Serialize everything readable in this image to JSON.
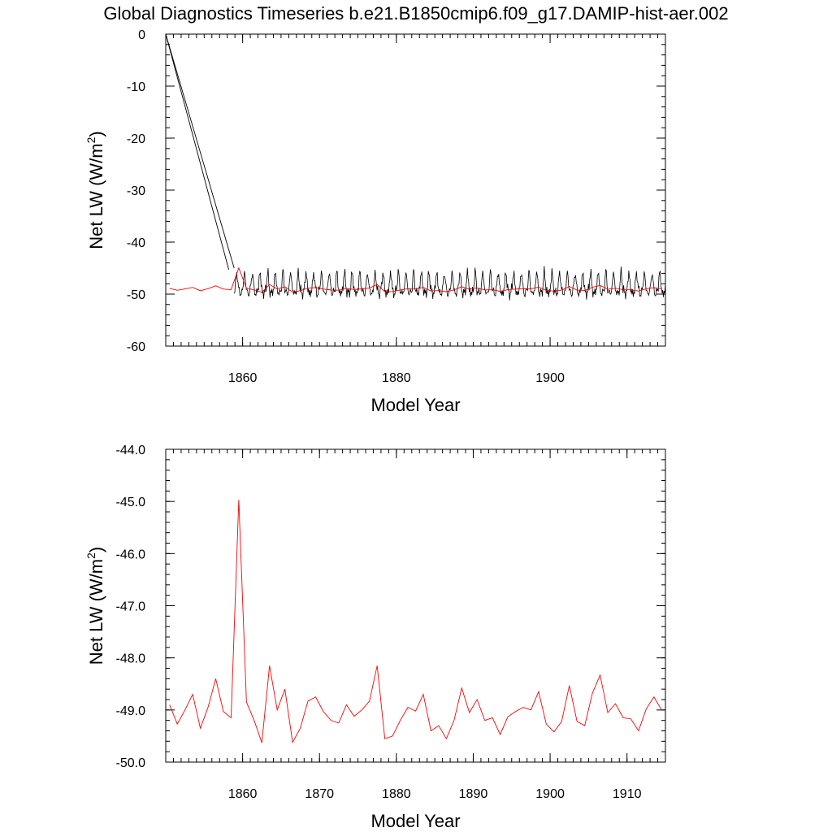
{
  "title": "Global Diagnostics Timeseries b.e21.B1850cmip6.f09_g17.DAMIP-hist-aer.002",
  "chart_data": [
    {
      "type": "line",
      "xlabel": "Model Year",
      "ylabel": "Net LW (W/m",
      "ylabel_sup": "2",
      "ylabel_close": ")",
      "xlim": [
        1850,
        1915
      ],
      "ylim": [
        -60,
        0
      ],
      "xticks": [
        1860,
        1880,
        1900
      ],
      "xtick_labels": [
        "1860",
        "1880",
        "1900"
      ],
      "yticks": [
        0,
        -10,
        -20,
        -30,
        -40,
        -50,
        -60
      ],
      "ytick_labels": [
        "0",
        "-10",
        "-20",
        "-30",
        "-40",
        "-50",
        "-60"
      ],
      "series": [
        {
          "color": "#000000",
          "description": "monthly",
          "x": [
            1850.0,
            1858.9
          ],
          "y": [
            0.0,
            -45.0
          ]
        },
        {
          "color": "#000000",
          "description": "monthly",
          "x": [
            1850.0,
            1858.2
          ],
          "y": [
            0.0,
            -45.3
          ]
        },
        {
          "color": "#ff0000",
          "description": "annual mean",
          "x": [
            1850.5,
            1851.5,
            1852.5,
            1853.5,
            1854.5,
            1855.5,
            1856.5,
            1857.5,
            1858.5,
            1859.5,
            1860.5,
            1861.5,
            1862.5,
            1863.5,
            1864.5,
            1865.5,
            1866.5,
            1867.5,
            1868.5,
            1869.5,
            1870.5,
            1871.5,
            1872.5,
            1873.5,
            1874.5,
            1875.5,
            1876.5,
            1877.5,
            1878.5,
            1879.5,
            1880.5,
            1881.5,
            1882.5,
            1883.5,
            1884.5,
            1885.5,
            1886.5,
            1887.5,
            1888.5,
            1889.5,
            1890.5,
            1891.5,
            1892.5,
            1893.5,
            1894.5,
            1895.5,
            1896.5,
            1897.5,
            1898.5,
            1899.5,
            1900.5,
            1901.5,
            1902.5,
            1903.5,
            1904.5,
            1905.5,
            1906.5,
            1907.5,
            1908.5,
            1909.5,
            1910.5,
            1911.5,
            1912.5,
            1913.5,
            1914.5
          ],
          "y": [
            -48.9,
            -49.27,
            -49.0,
            -48.7,
            -49.35,
            -48.95,
            -48.4,
            -49.03,
            -49.15,
            -44.97,
            -48.85,
            -49.2,
            -49.63,
            -48.15,
            -49.0,
            -48.6,
            -49.62,
            -49.35,
            -48.83,
            -48.75,
            -49.03,
            -49.2,
            -49.25,
            -48.9,
            -49.12,
            -49.0,
            -48.83,
            -48.15,
            -49.55,
            -49.5,
            -49.2,
            -48.95,
            -49.02,
            -48.7,
            -49.4,
            -49.3,
            -49.55,
            -49.2,
            -48.58,
            -49.05,
            -48.8,
            -49.2,
            -49.15,
            -49.47,
            -49.13,
            -49.03,
            -48.95,
            -49.0,
            -48.65,
            -49.27,
            -49.42,
            -49.22,
            -48.53,
            -49.22,
            -49.3,
            -48.68,
            -48.33,
            -49.05,
            -48.88,
            -49.15,
            -49.17,
            -49.4,
            -48.98,
            -48.75,
            -49.0
          ]
        }
      ],
      "monthly_cycle": {
        "color": "#000000",
        "description": "monthly",
        "x_start": 1858.9,
        "x_end": 1915.0,
        "mean": -49.1,
        "amplitude": 2.1
      }
    },
    {
      "type": "line",
      "xlabel": "Model Year",
      "ylabel": "Net LW (W/m",
      "ylabel_sup": "2",
      "ylabel_close": ")",
      "xlim": [
        1850,
        1915
      ],
      "ylim": [
        -50,
        -44
      ],
      "xticks": [
        1860,
        1870,
        1880,
        1890,
        1900,
        1910
      ],
      "xtick_labels": [
        "1860",
        "1870",
        "1880",
        "1890",
        "1900",
        "1910"
      ],
      "yticks": [
        -44,
        -45,
        -46,
        -47,
        -48,
        -49,
        -50
      ],
      "ytick_labels": [
        "-44.0",
        "-45.0",
        "-46.0",
        "-47.0",
        "-48.0",
        "-49.0",
        "-50.0"
      ],
      "series": [
        {
          "color": "#ff0000",
          "description": "annual mean",
          "x": [
            1850.5,
            1851.5,
            1852.5,
            1853.5,
            1854.5,
            1855.5,
            1856.5,
            1857.5,
            1858.5,
            1859.5,
            1860.5,
            1861.5,
            1862.5,
            1863.5,
            1864.5,
            1865.5,
            1866.5,
            1867.5,
            1868.5,
            1869.5,
            1870.5,
            1871.5,
            1872.5,
            1873.5,
            1874.5,
            1875.5,
            1876.5,
            1877.5,
            1878.5,
            1879.5,
            1880.5,
            1881.5,
            1882.5,
            1883.5,
            1884.5,
            1885.5,
            1886.5,
            1887.5,
            1888.5,
            1889.5,
            1890.5,
            1891.5,
            1892.5,
            1893.5,
            1894.5,
            1895.5,
            1896.5,
            1897.5,
            1898.5,
            1899.5,
            1900.5,
            1901.5,
            1902.5,
            1903.5,
            1904.5,
            1905.5,
            1906.5,
            1907.5,
            1908.5,
            1909.5,
            1910.5,
            1911.5,
            1912.5,
            1913.5,
            1914.5
          ],
          "y": [
            -48.9,
            -49.27,
            -49.0,
            -48.7,
            -49.35,
            -48.95,
            -48.4,
            -49.03,
            -49.15,
            -44.97,
            -48.85,
            -49.2,
            -49.63,
            -48.15,
            -49.0,
            -48.6,
            -49.62,
            -49.35,
            -48.83,
            -48.75,
            -49.03,
            -49.2,
            -49.25,
            -48.9,
            -49.12,
            -49.0,
            -48.83,
            -48.15,
            -49.55,
            -49.5,
            -49.2,
            -48.95,
            -49.02,
            -48.7,
            -49.4,
            -49.3,
            -49.55,
            -49.2,
            -48.58,
            -49.05,
            -48.8,
            -49.2,
            -49.15,
            -49.47,
            -49.13,
            -49.03,
            -48.95,
            -49.0,
            -48.65,
            -49.27,
            -49.42,
            -49.22,
            -48.53,
            -49.22,
            -49.3,
            -48.68,
            -48.33,
            -49.05,
            -48.88,
            -49.15,
            -49.17,
            -49.4,
            -48.98,
            -48.75,
            -49.0
          ]
        }
      ]
    }
  ]
}
